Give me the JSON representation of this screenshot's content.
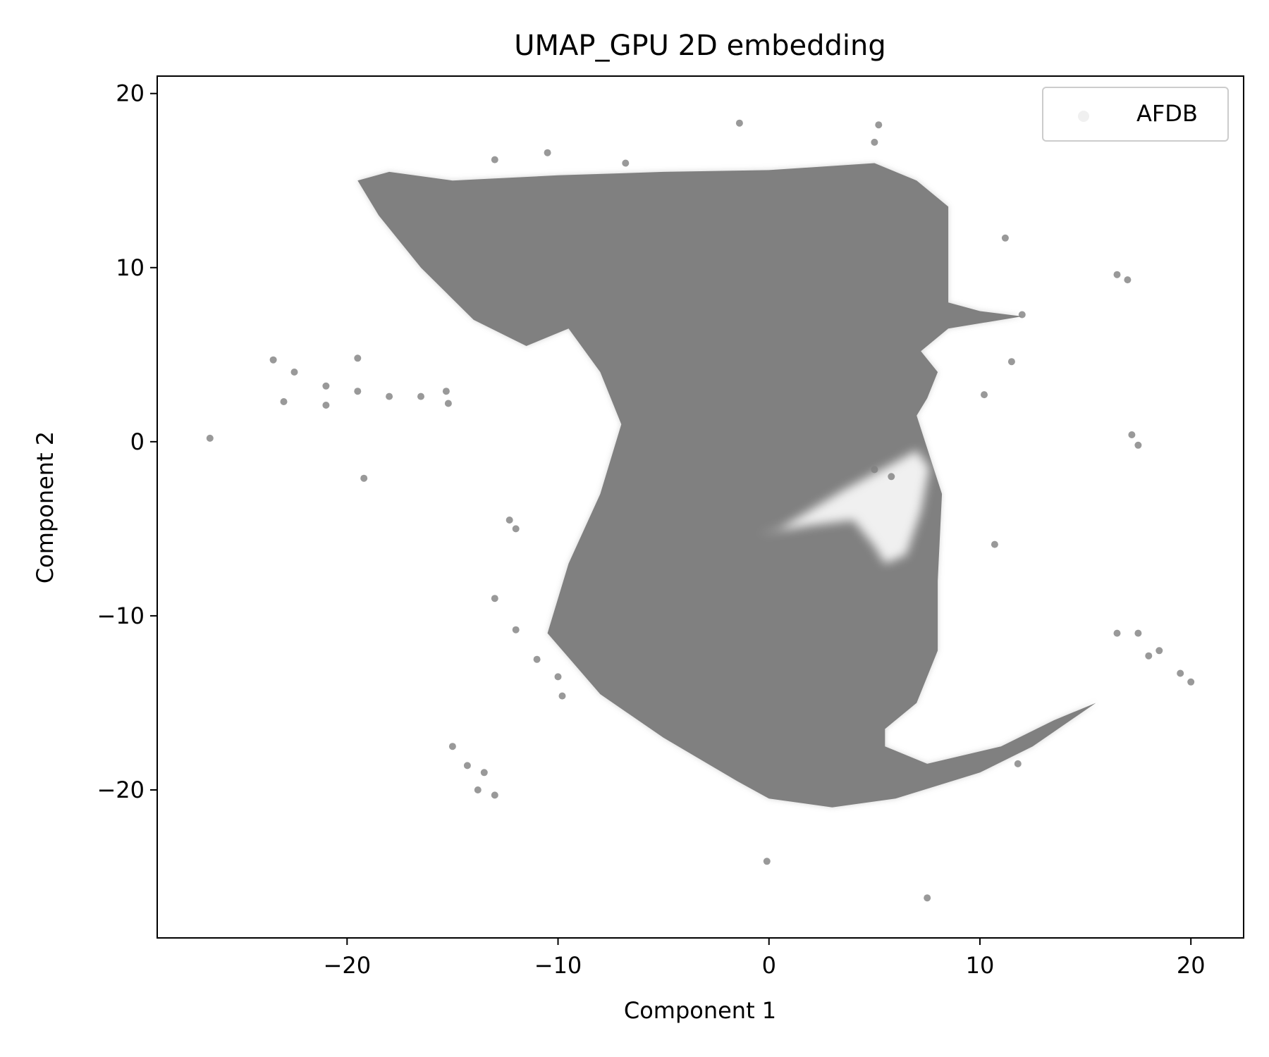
{
  "chart_data": {
    "type": "scatter",
    "title": "UMAP_GPU 2D embedding",
    "xlabel": "Component 1",
    "ylabel": "Component 2",
    "xlim": [
      -29,
      22.5
    ],
    "ylim": [
      -28.5,
      21
    ],
    "xticks": [
      -20,
      -10,
      0,
      10,
      20
    ],
    "yticks": [
      -20,
      -10,
      0,
      10,
      20
    ],
    "xtick_labels": [
      "−20",
      "−10",
      "0",
      "10",
      "20"
    ],
    "ytick_labels": [
      "−20",
      "−10",
      "0",
      "10",
      "20"
    ],
    "grid": false,
    "legend_position": "top-right",
    "series": [
      {
        "name": "AFDB",
        "color": "#808080",
        "main_region": [
          [
            -19.5,
            15
          ],
          [
            -18,
            15.5
          ],
          [
            -15,
            15
          ],
          [
            -10,
            15.3
          ],
          [
            -5,
            15.5
          ],
          [
            0,
            15.6
          ],
          [
            5,
            16
          ],
          [
            7,
            15
          ],
          [
            8.5,
            13.5
          ],
          [
            8.5,
            10
          ],
          [
            8.5,
            8
          ],
          [
            10,
            7.5
          ],
          [
            12,
            7.2
          ],
          [
            8.5,
            6.5
          ],
          [
            7.2,
            5.2
          ],
          [
            8,
            4
          ],
          [
            7.5,
            2.5
          ],
          [
            7,
            1.5
          ],
          [
            7.8,
            -1.5
          ],
          [
            8.2,
            -3
          ],
          [
            8,
            -8
          ],
          [
            8,
            -12
          ],
          [
            7,
            -15
          ],
          [
            5.5,
            -16.5
          ],
          [
            5.5,
            -17.5
          ],
          [
            7.5,
            -18.5
          ],
          [
            11,
            -17.5
          ],
          [
            13.5,
            -16
          ],
          [
            15.5,
            -15
          ],
          [
            12.5,
            -17.5
          ],
          [
            10,
            -19
          ],
          [
            6,
            -20.5
          ],
          [
            3,
            -21
          ],
          [
            0,
            -20.5
          ],
          [
            -1.5,
            -19.5
          ],
          [
            -5,
            -17
          ],
          [
            -8,
            -14.5
          ],
          [
            -10.5,
            -11
          ],
          [
            -9.5,
            -7
          ],
          [
            -8,
            -3
          ],
          [
            -7,
            1
          ],
          [
            -8,
            4
          ],
          [
            -9.5,
            6.5
          ],
          [
            -11.5,
            5.5
          ],
          [
            -14,
            7
          ],
          [
            -16.5,
            10
          ],
          [
            -18.5,
            13
          ]
        ],
        "cavity_region": [
          [
            7,
            -0.5
          ],
          [
            5.5,
            -1.5
          ],
          [
            3.5,
            -2.8
          ],
          [
            0.5,
            -5
          ],
          [
            -0.5,
            -5.3
          ],
          [
            2,
            -4.8
          ],
          [
            4,
            -4.5
          ],
          [
            5,
            -6
          ],
          [
            5.5,
            -7
          ],
          [
            6.5,
            -6.5
          ],
          [
            7.2,
            -4
          ],
          [
            7.6,
            -1.5
          ]
        ],
        "clusters": [
          {
            "x": -23.5,
            "y": 4.7
          },
          {
            "x": -22.5,
            "y": 4.0
          },
          {
            "x": -21,
            "y": 3.2
          },
          {
            "x": -19.5,
            "y": 2.9
          },
          {
            "x": -18,
            "y": 2.6
          },
          {
            "x": -16.5,
            "y": 2.6
          },
          {
            "x": -15.3,
            "y": 2.9
          },
          {
            "x": -23,
            "y": 2.3
          },
          {
            "x": -21,
            "y": 2.1
          },
          {
            "x": -19.5,
            "y": 4.8
          },
          {
            "x": -13,
            "y": -9
          },
          {
            "x": -12,
            "y": -10.8
          },
          {
            "x": -11,
            "y": -12.5
          },
          {
            "x": -10,
            "y": -13.5
          },
          {
            "x": -9.8,
            "y": -14.6
          },
          {
            "x": -15,
            "y": -17.5
          },
          {
            "x": -14.3,
            "y": -18.6
          },
          {
            "x": -13.5,
            "y": -19
          },
          {
            "x": -13.8,
            "y": -20
          },
          {
            "x": -13,
            "y": -20.3
          },
          {
            "x": 16.5,
            "y": -11
          },
          {
            "x": 17.5,
            "y": -11
          },
          {
            "x": 18.5,
            "y": -12
          },
          {
            "x": 19.5,
            "y": -13.3
          },
          {
            "x": 20,
            "y": -13.8
          },
          {
            "x": 18,
            "y": -12.3
          },
          {
            "x": -13,
            "y": 16.2
          },
          {
            "x": -10.5,
            "y": 16.6
          },
          {
            "x": -6.8,
            "y": 16
          },
          {
            "x": -1.4,
            "y": 18.3
          },
          {
            "x": 5.2,
            "y": 18.2
          },
          {
            "x": 5,
            "y": 17.2
          },
          {
            "x": 17,
            "y": 9.3
          },
          {
            "x": 16.5,
            "y": 9.6
          },
          {
            "x": 17.2,
            "y": 0.4
          },
          {
            "x": 17.5,
            "y": -0.2
          },
          {
            "x": 10.2,
            "y": 2.7
          },
          {
            "x": 12,
            "y": 7.3
          },
          {
            "x": 11.8,
            "y": -18.5
          },
          {
            "x": 5,
            "y": -1.6
          },
          {
            "x": 5.8,
            "y": -2.0
          },
          {
            "x": -12.3,
            "y": -4.5
          },
          {
            "x": -12,
            "y": -5
          },
          {
            "x": -26.5,
            "y": 0.2
          },
          {
            "x": -19.2,
            "y": -2.1
          },
          {
            "x": -0.1,
            "y": -24.1
          },
          {
            "x": 7.5,
            "y": -26.2
          },
          {
            "x": 10.7,
            "y": -5.9
          },
          {
            "x": 11.2,
            "y": 11.7
          },
          {
            "x": 11.5,
            "y": 4.6
          },
          {
            "x": -15.2,
            "y": 2.2
          }
        ]
      }
    ]
  }
}
